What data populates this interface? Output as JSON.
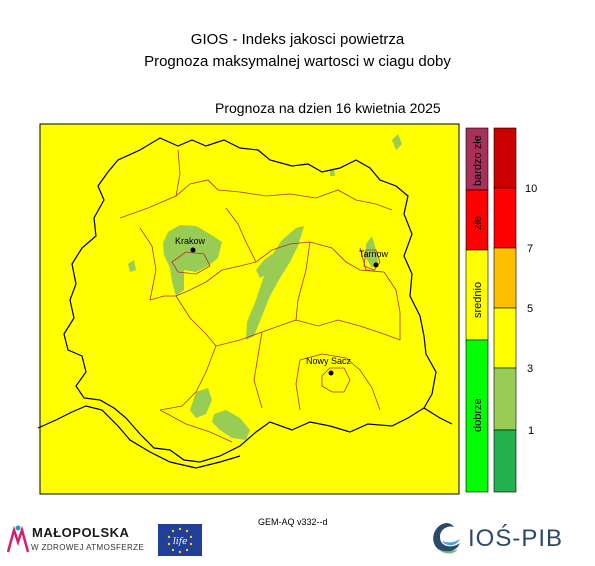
{
  "title": {
    "line1": "GIOS - Indeks jakosci powietrza",
    "line2": "Prognoza maksymalnej wartosci w ciagu doby",
    "forecast": "Prognoza na dzien  16 kwietnia 2025"
  },
  "cities": [
    {
      "name": "Krakow",
      "label": "Krakow"
    },
    {
      "name": "Tarnow",
      "label": "Tarnow"
    },
    {
      "name": "Nowy Sacz",
      "label": "Nowy Sacz"
    }
  ],
  "categories": [
    {
      "label": "bardzo złe",
      "color": "#a8305a"
    },
    {
      "label": "złe",
      "color": "#ff0000"
    },
    {
      "label": "srednio",
      "color": "#ffff00"
    },
    {
      "label": "dobrze",
      "color": "#00ff00"
    }
  ],
  "scale": {
    "colors": [
      "#cc0000",
      "#ff0000",
      "#ffbf00",
      "#ffff00",
      "#99cc55",
      "#22b14c"
    ],
    "ticks": [
      "10",
      "7",
      "5",
      "3",
      "1"
    ]
  },
  "colors": {
    "background_index": "#ffff00",
    "low_index": "#99cc55",
    "region_border": "#b03030",
    "outline": "#000000"
  },
  "footer": {
    "model": "GEM-AQ v332--d",
    "logo_left_main": "MAŁOPOLSKA",
    "logo_left_sub": "W ZDROWEJ ATMOSFERZE",
    "logo_eu": "life",
    "logo_right": "IOŚ-PIB"
  }
}
